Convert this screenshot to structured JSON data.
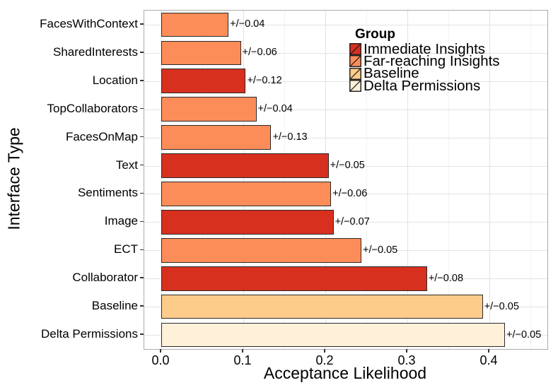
{
  "figure": {
    "background": "#FFFFFF"
  },
  "chart_data": {
    "type": "bar",
    "orientation": "horizontal",
    "xlabel": "Acceptance Likelihood",
    "ylabel": "Interface Type",
    "xlim": [
      -0.021,
      0.471
    ],
    "x_major_ticks": [
      0.0,
      0.1,
      0.2,
      0.3,
      0.4
    ],
    "x_tick_labels": [
      "0.0",
      "0.1",
      "0.2",
      "0.3",
      "0.4"
    ],
    "x_minor_ticks": [
      0.05,
      0.15,
      0.25,
      0.35,
      0.45
    ],
    "grid": "vertical major+minor, horizontal major at category centers",
    "legend": {
      "title": "Group",
      "position": "top-right-inside",
      "entries": [
        {
          "label": "Immediate Insights",
          "color": "#D7301F"
        },
        {
          "label": "Far-reaching Insights",
          "color": "#FC8D59"
        },
        {
          "label": "Baseline",
          "color": "#FDCC8A"
        },
        {
          "label": "Delta Permissions",
          "color": "#FEF0D9"
        }
      ]
    },
    "bars": [
      {
        "category": "FacesWithContext",
        "value": 0.082,
        "error": 0.04,
        "error_label": "+/−0.04",
        "group": "Far-reaching Insights"
      },
      {
        "category": "SharedInterests",
        "value": 0.097,
        "error": 0.06,
        "error_label": "+/−0.06",
        "group": "Far-reaching Insights"
      },
      {
        "category": "Location",
        "value": 0.103,
        "error": 0.12,
        "error_label": "+/−0.12",
        "group": "Immediate Insights"
      },
      {
        "category": "TopCollaborators",
        "value": 0.116,
        "error": 0.04,
        "error_label": "+/−0.04",
        "group": "Far-reaching Insights"
      },
      {
        "category": "FacesOnMap",
        "value": 0.134,
        "error": 0.13,
        "error_label": "+/−0.13",
        "group": "Far-reaching Insights"
      },
      {
        "category": "Text",
        "value": 0.204,
        "error": 0.05,
        "error_label": "+/−0.05",
        "group": "Immediate Insights"
      },
      {
        "category": "Sentiments",
        "value": 0.207,
        "error": 0.06,
        "error_label": "+/−0.06",
        "group": "Far-reaching Insights"
      },
      {
        "category": "Image",
        "value": 0.21,
        "error": 0.07,
        "error_label": "+/−0.07",
        "group": "Immediate Insights"
      },
      {
        "category": "ECT",
        "value": 0.244,
        "error": 0.05,
        "error_label": "+/−0.05",
        "group": "Far-reaching Insights"
      },
      {
        "category": "Collaborator",
        "value": 0.324,
        "error": 0.08,
        "error_label": "+/−0.08",
        "group": "Immediate Insights"
      },
      {
        "category": "Baseline",
        "value": 0.392,
        "error": 0.05,
        "error_label": "+/−0.05",
        "group": "Baseline"
      },
      {
        "category": "Delta Permissions",
        "value": 0.419,
        "error": 0.05,
        "error_label": "+/−0.05",
        "group": "Delta Permissions"
      }
    ],
    "colors": {
      "bar_stroke": "#2B2B2B",
      "grid_major": "#E3E3E3",
      "grid_minor": "#F2F2F2",
      "panel_border": "#ABABAB",
      "tick_mark": "#333333",
      "text": "#000000"
    }
  }
}
